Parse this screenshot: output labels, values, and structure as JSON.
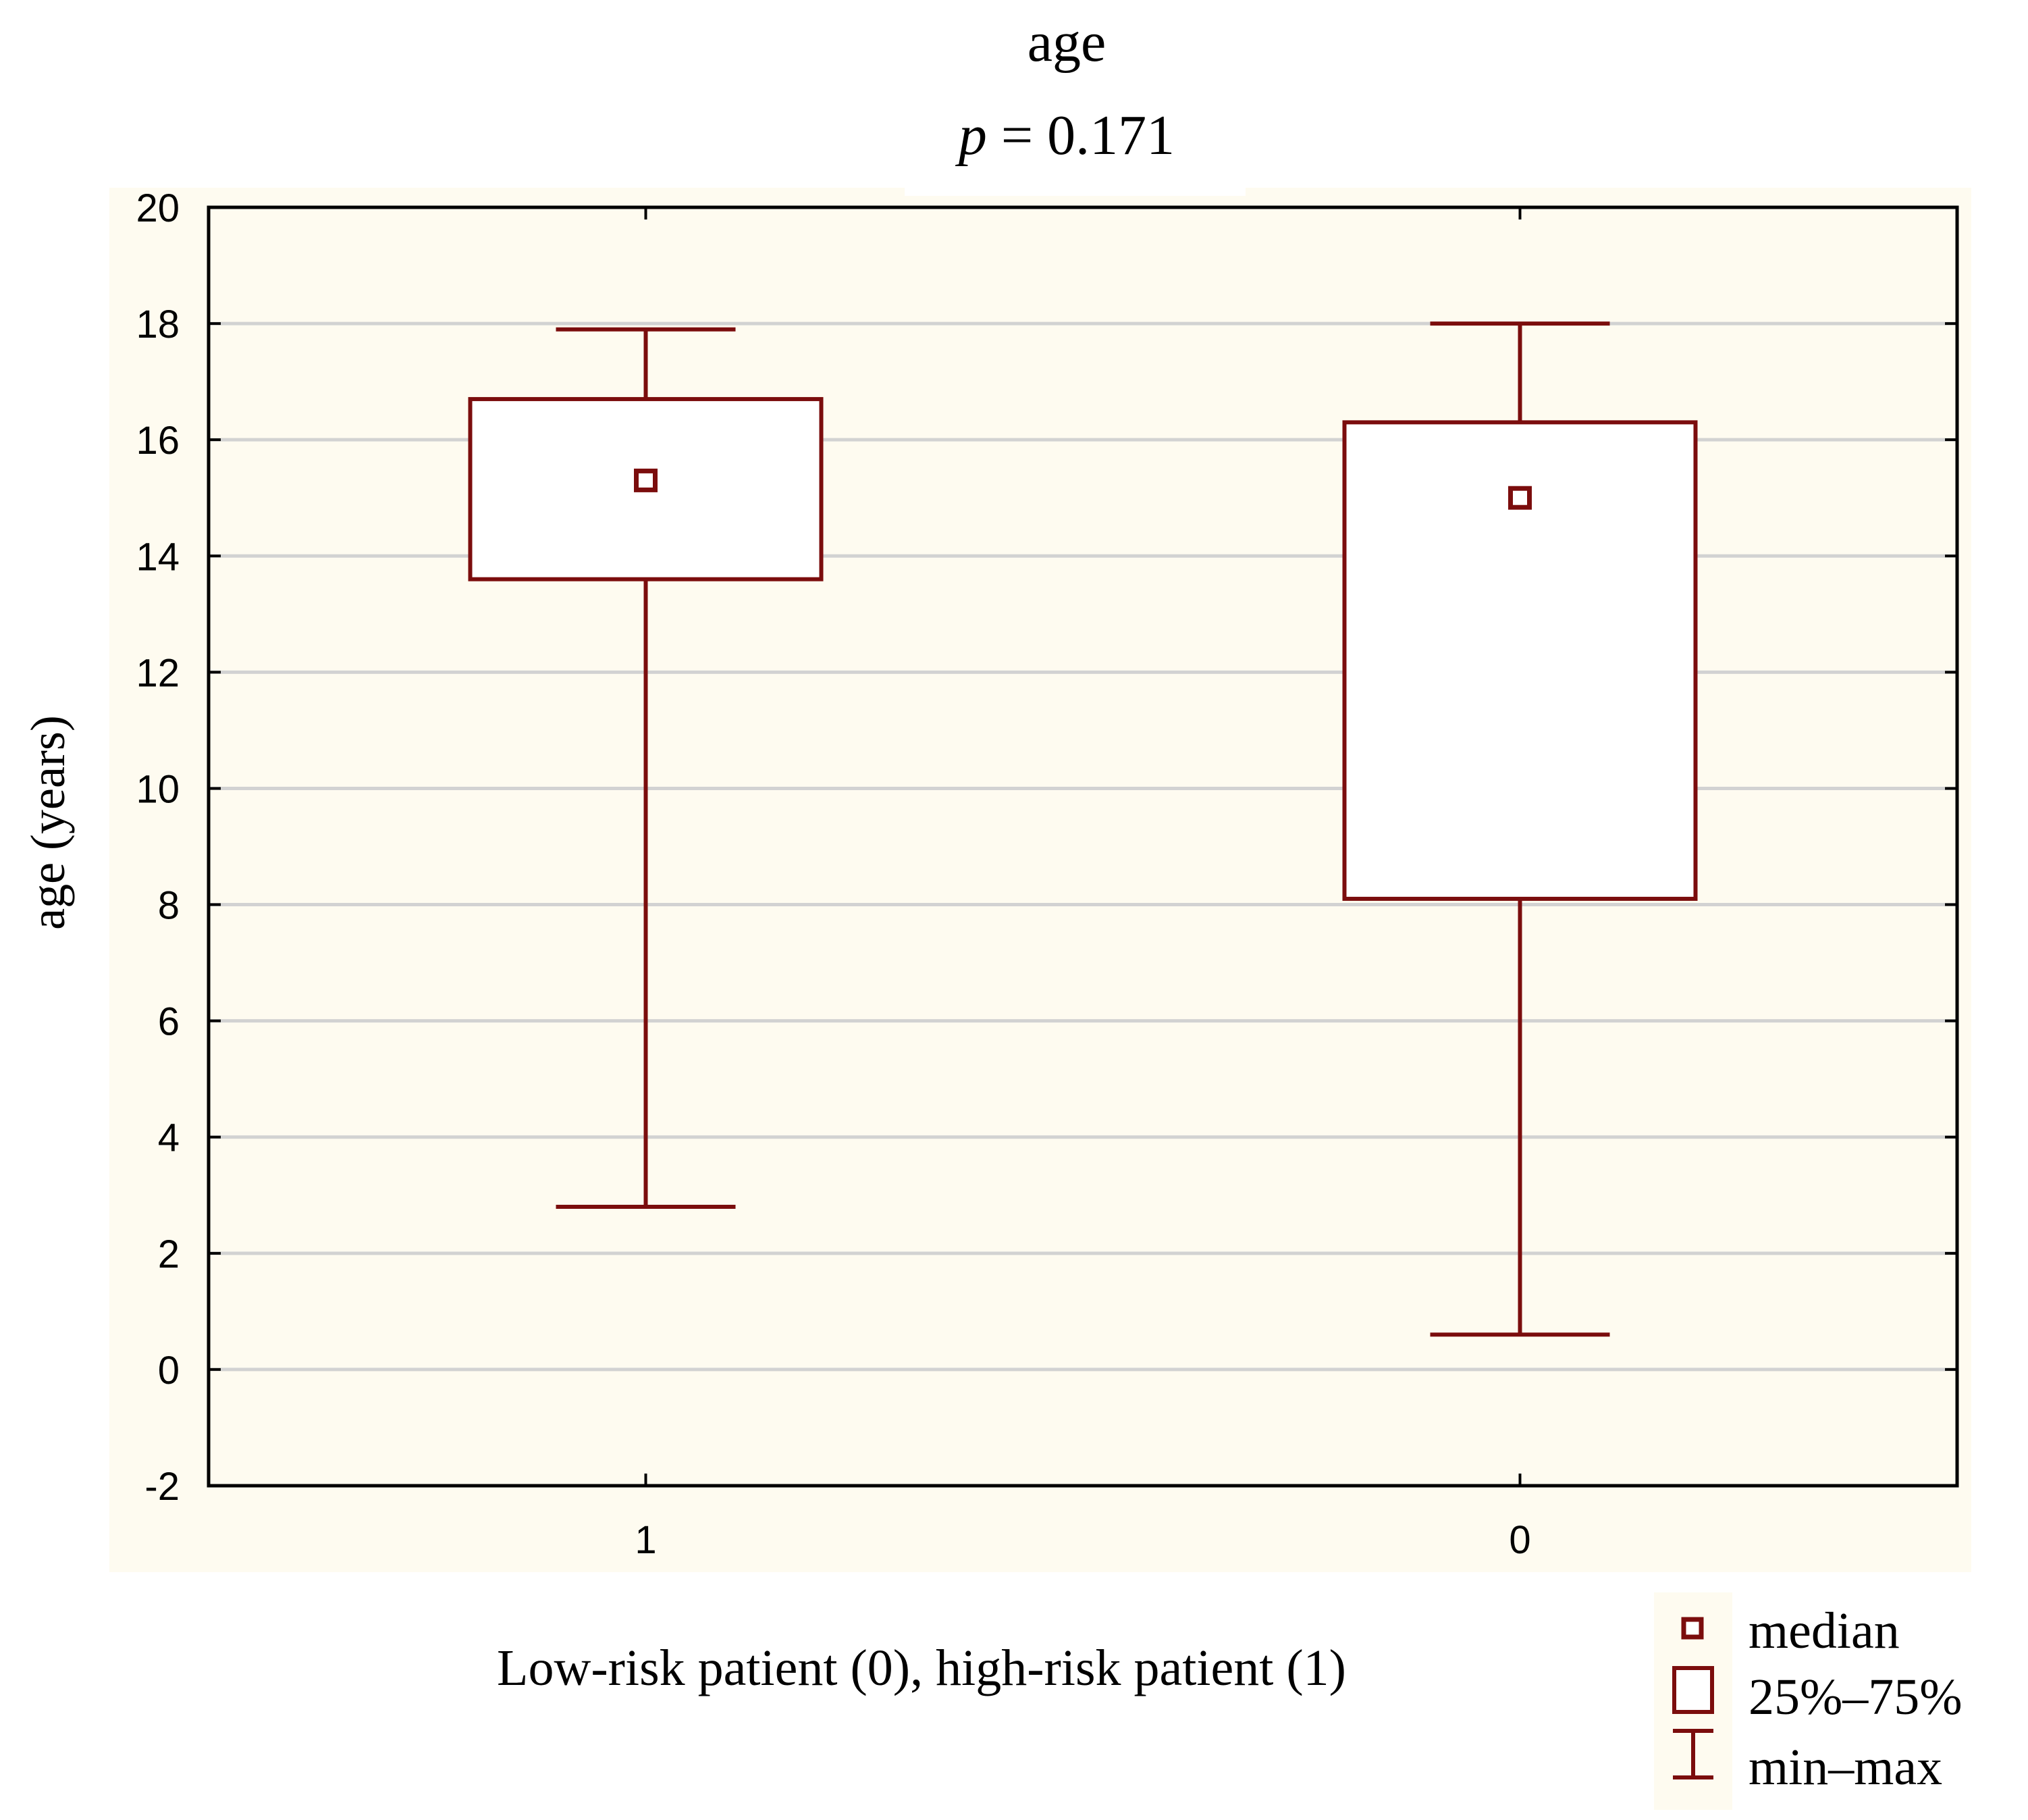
{
  "chart_data": {
    "type": "box",
    "title": "age",
    "subtitle_italic": "p",
    "subtitle_rest": " = 0.171",
    "xlabel": "Low-risk patient (0), high-risk patient (1)",
    "ylabel": "age (years)",
    "ylim": [
      -2,
      20
    ],
    "yticks": [
      -2,
      0,
      2,
      4,
      6,
      8,
      10,
      12,
      14,
      16,
      18,
      20
    ],
    "ytick_labels": [
      "-2",
      "0",
      "2",
      "4",
      "6",
      "8",
      "10",
      "12",
      "14",
      "16",
      "18",
      "20"
    ],
    "categories": [
      "1",
      "0"
    ],
    "grid": true,
    "series": [
      {
        "name": "1",
        "min": 2.8,
        "q1": 13.6,
        "median": 15.3,
        "q3": 16.7,
        "max": 17.9
      },
      {
        "name": "0",
        "min": 0.6,
        "q1": 8.1,
        "median": 15.0,
        "q3": 16.3,
        "max": 18.0
      }
    ],
    "legend": {
      "position": "bottom-right",
      "entries": [
        "median",
        "25%–75%",
        "min–max"
      ]
    }
  },
  "colors": {
    "series": "#7b0d0d",
    "plot_bg": "#fefbf0",
    "grid": "#d2d2d2",
    "axis": "#000000"
  }
}
